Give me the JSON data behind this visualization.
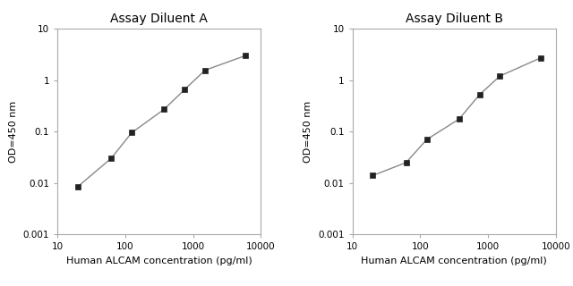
{
  "panel_A": {
    "title": "Assay Diluent A",
    "x": [
      20,
      62,
      125,
      375,
      750,
      1500,
      6000
    ],
    "y": [
      0.0085,
      0.03,
      0.095,
      0.27,
      0.65,
      1.55,
      3.0
    ],
    "xlabel": "Human ALCAM concentration (pg/ml)",
    "ylabel": "OD=450 nm",
    "xlim": [
      10,
      10000
    ],
    "ylim": [
      0.001,
      10
    ]
  },
  "panel_B": {
    "title": "Assay Diluent B",
    "x": [
      20,
      62,
      125,
      375,
      750,
      1500,
      6000
    ],
    "y": [
      0.014,
      0.025,
      0.07,
      0.175,
      0.52,
      1.2,
      2.7
    ],
    "xlabel": "Human ALCAM concentration (pg/ml)",
    "ylabel": "OD=450 nm",
    "xlim": [
      10,
      10000
    ],
    "ylim": [
      0.001,
      10
    ]
  },
  "line_color": "#888888",
  "marker": "s",
  "marker_color": "#222222",
  "marker_size": 4,
  "line_width": 1.0,
  "bg_color": "#ffffff",
  "spine_color": "#aaaaaa",
  "title_fontsize": 10,
  "label_fontsize": 8,
  "tick_fontsize": 7.5
}
